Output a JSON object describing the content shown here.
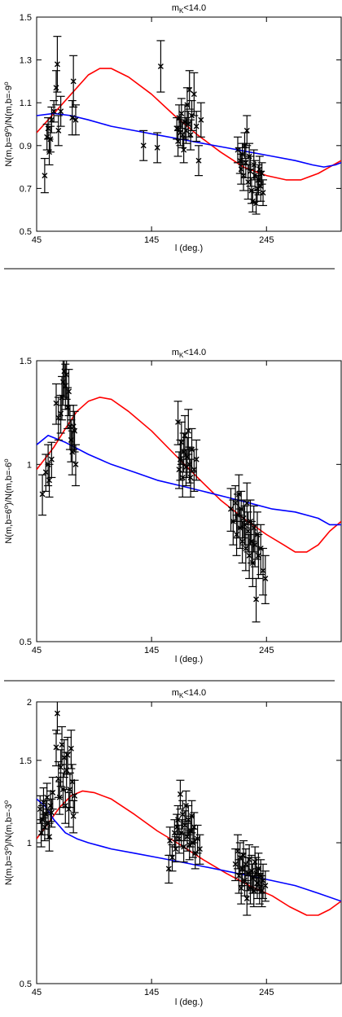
{
  "chart_data": [
    {
      "type": "scatter",
      "title": "m_K<14.0",
      "title_main": "m",
      "title_sub": "K",
      "title_rest": "<14.0",
      "xlabel": "l (deg.)",
      "ylabel": "N(m,b=9°)/N(m,b=-9°)",
      "ylabel_text": "N(m,b=9",
      "ylabel_text2": ")/N(m,b=-9",
      "ylabel_deg": "o",
      "xlim": [
        45,
        310
      ],
      "ylim": [
        0.5,
        1.5
      ],
      "xticks": [
        "45",
        "145",
        "245"
      ],
      "xtick_values": [
        45,
        145,
        245
      ],
      "yticks": [
        "0.5",
        "0.7",
        "0.9",
        "1.1",
        "1.3",
        "1.5"
      ],
      "ytick_values": [
        0.5,
        0.7,
        0.9,
        1.1,
        1.3,
        1.5
      ],
      "points": [
        [
          52,
          0.76,
          0.08
        ],
        [
          54,
          0.94,
          0.06
        ],
        [
          55,
          0.98,
          0.05
        ],
        [
          56,
          0.87,
          0.06
        ],
        [
          57,
          0.93,
          0.06
        ],
        [
          58,
          1.02,
          0.06
        ],
        [
          60,
          1.06,
          0.05
        ],
        [
          62,
          1.17,
          0.08
        ],
        [
          63,
          1.28,
          0.13
        ],
        [
          64,
          0.97,
          0.07
        ],
        [
          66,
          1.06,
          0.07
        ],
        [
          76,
          1.03,
          0.08
        ],
        [
          77,
          1.2,
          0.12
        ],
        [
          79,
          1.02,
          0.07
        ],
        [
          138,
          0.9,
          0.07
        ],
        [
          150,
          0.89,
          0.07
        ],
        [
          153,
          1.27,
          0.12
        ],
        [
          167,
          0.98,
          0.05
        ],
        [
          168,
          0.92,
          0.07
        ],
        [
          169,
          1.03,
          0.06
        ],
        [
          170,
          0.96,
          0.06
        ],
        [
          171,
          1.05,
          0.07
        ],
        [
          172,
          0.95,
          0.06
        ],
        [
          173,
          0.88,
          0.06
        ],
        [
          174,
          1.01,
          0.08
        ],
        [
          175,
          0.97,
          0.06
        ],
        [
          176,
          1.09,
          0.08
        ],
        [
          177,
          1.0,
          0.06
        ],
        [
          178,
          1.16,
          0.09
        ],
        [
          179,
          0.95,
          0.07
        ],
        [
          180,
          1.04,
          0.07
        ],
        [
          182,
          1.14,
          0.1
        ],
        [
          184,
          0.99,
          0.07
        ],
        [
          186,
          0.83,
          0.07
        ],
        [
          188,
          1.02,
          0.08
        ],
        [
          220,
          0.88,
          0.06
        ],
        [
          222,
          0.83,
          0.06
        ],
        [
          223,
          0.79,
          0.07
        ],
        [
          224,
          0.86,
          0.05
        ],
        [
          225,
          0.76,
          0.07
        ],
        [
          226,
          0.9,
          0.06
        ],
        [
          227,
          0.82,
          0.07
        ],
        [
          228,
          0.97,
          0.07
        ],
        [
          229,
          0.73,
          0.08
        ],
        [
          230,
          0.85,
          0.06
        ],
        [
          231,
          0.78,
          0.07
        ],
        [
          232,
          0.69,
          0.06
        ],
        [
          233,
          0.64,
          0.05
        ],
        [
          234,
          0.81,
          0.07
        ],
        [
          235,
          0.76,
          0.07
        ],
        [
          236,
          0.63,
          0.05
        ],
        [
          237,
          0.7,
          0.06
        ],
        [
          238,
          0.74,
          0.07
        ],
        [
          239,
          0.79,
          0.06
        ],
        [
          240,
          0.71,
          0.07
        ],
        [
          241,
          0.77,
          0.05
        ],
        [
          242,
          0.68,
          0.06
        ]
      ],
      "series": [
        {
          "color": "#ff0000",
          "x": [
            45,
            60,
            75,
            90,
            100,
            110,
            125,
            145,
            165,
            185,
            205,
            225,
            245,
            262,
            275,
            290,
            300,
            310
          ],
          "y": [
            0.96,
            1.05,
            1.14,
            1.23,
            1.26,
            1.26,
            1.22,
            1.14,
            1.04,
            0.95,
            0.87,
            0.8,
            0.76,
            0.74,
            0.74,
            0.77,
            0.8,
            0.83
          ]
        },
        {
          "color": "#0000ff",
          "x": [
            45,
            60,
            75,
            90,
            110,
            130,
            150,
            170,
            190,
            210,
            230,
            250,
            270,
            285,
            295,
            305,
            310
          ],
          "y": [
            1.04,
            1.05,
            1.04,
            1.02,
            0.99,
            0.97,
            0.95,
            0.93,
            0.91,
            0.89,
            0.87,
            0.85,
            0.83,
            0.81,
            0.8,
            0.81,
            0.82
          ]
        }
      ]
    },
    {
      "type": "scatter",
      "title": "m_K<14.0",
      "title_main": "m",
      "title_sub": "K",
      "title_rest": "<14.0",
      "xlabel": "l (deg.)",
      "ylabel": "N(m,b=6°)/N(m,b=-6°)",
      "ylabel_text": "N(m,b=6",
      "ylabel_text2": ")/N(m,b=-6",
      "ylabel_deg": "o",
      "xlim": [
        45,
        310
      ],
      "ylim": [
        0.5,
        1.5
      ],
      "log_y": true,
      "xticks": [
        "45",
        "145",
        "245"
      ],
      "xtick_values": [
        45,
        145,
        245
      ],
      "yticks": [
        "0.5",
        "1",
        "1.5"
      ],
      "ytick_values": [
        0.5,
        1.0,
        1.5
      ],
      "points": [
        [
          50,
          0.89,
          0.07
        ],
        [
          53,
          0.97,
          0.07
        ],
        [
          55,
          1.0,
          0.08
        ],
        [
          56,
          0.94,
          0.06
        ],
        [
          58,
          1.02,
          0.07
        ],
        [
          62,
          1.27,
          0.1
        ],
        [
          64,
          1.2,
          0.1
        ],
        [
          66,
          1.22,
          0.09
        ],
        [
          67,
          1.3,
          0.11
        ],
        [
          68,
          1.38,
          0.12
        ],
        [
          69,
          1.44,
          0.14
        ],
        [
          70,
          1.36,
          0.12
        ],
        [
          71,
          1.42,
          0.13
        ],
        [
          72,
          1.25,
          0.1
        ],
        [
          73,
          1.33,
          0.12
        ],
        [
          74,
          1.16,
          0.1
        ],
        [
          75,
          1.1,
          0.09
        ],
        [
          76,
          1.05,
          0.09
        ],
        [
          77,
          1.16,
          0.1
        ],
        [
          78,
          1.14,
          0.09
        ],
        [
          79,
          1.0,
          0.08
        ],
        [
          168,
          1.18,
          0.1
        ],
        [
          169,
          0.98,
          0.07
        ],
        [
          170,
          1.02,
          0.08
        ],
        [
          171,
          1.09,
          0.09
        ],
        [
          172,
          0.95,
          0.07
        ],
        [
          173,
          1.05,
          0.08
        ],
        [
          174,
          1.12,
          0.09
        ],
        [
          175,
          0.99,
          0.07
        ],
        [
          176,
          1.03,
          0.08
        ],
        [
          177,
          1.14,
          0.1
        ],
        [
          178,
          1.0,
          0.07
        ],
        [
          179,
          0.95,
          0.07
        ],
        [
          180,
          1.06,
          0.09
        ],
        [
          182,
          0.98,
          0.08
        ],
        [
          184,
          1.02,
          0.08
        ],
        [
          214,
          0.84,
          0.07
        ],
        [
          216,
          0.8,
          0.07
        ],
        [
          218,
          0.86,
          0.06
        ],
        [
          219,
          0.76,
          0.06
        ],
        [
          220,
          0.82,
          0.07
        ],
        [
          221,
          0.89,
          0.07
        ],
        [
          222,
          0.78,
          0.06
        ],
        [
          223,
          0.84,
          0.06
        ],
        [
          224,
          0.74,
          0.06
        ],
        [
          225,
          0.81,
          0.06
        ],
        [
          226,
          0.79,
          0.06
        ],
        [
          227,
          0.72,
          0.06
        ],
        [
          228,
          0.86,
          0.07
        ],
        [
          229,
          0.77,
          0.06
        ],
        [
          230,
          0.7,
          0.06
        ],
        [
          231,
          0.8,
          0.07
        ],
        [
          232,
          0.74,
          0.06
        ],
        [
          233,
          0.68,
          0.06
        ],
        [
          234,
          0.78,
          0.07
        ],
        [
          235,
          0.73,
          0.06
        ],
        [
          236,
          0.59,
          0.05
        ],
        [
          237,
          0.76,
          0.07
        ],
        [
          238,
          0.7,
          0.06
        ],
        [
          240,
          0.72,
          0.07
        ],
        [
          242,
          0.66,
          0.06
        ],
        [
          244,
          0.64,
          0.06
        ]
      ],
      "series": [
        {
          "color": "#ff0000",
          "x": [
            45,
            60,
            70,
            80,
            90,
            100,
            110,
            125,
            145,
            165,
            185,
            205,
            225,
            245,
            260,
            270,
            280,
            290,
            300,
            310
          ],
          "y": [
            0.98,
            1.07,
            1.15,
            1.23,
            1.28,
            1.3,
            1.29,
            1.23,
            1.14,
            1.04,
            0.95,
            0.87,
            0.81,
            0.76,
            0.73,
            0.71,
            0.71,
            0.73,
            0.77,
            0.8
          ]
        },
        {
          "color": "#0000ff",
          "x": [
            45,
            55,
            70,
            90,
            110,
            130,
            150,
            170,
            190,
            210,
            230,
            250,
            270,
            290,
            300,
            310
          ],
          "y": [
            1.08,
            1.12,
            1.09,
            1.04,
            1.0,
            0.97,
            0.94,
            0.92,
            0.9,
            0.88,
            0.86,
            0.84,
            0.83,
            0.81,
            0.79,
            0.79
          ]
        }
      ]
    },
    {
      "type": "scatter",
      "title": "m_K<14.0",
      "title_main": "m",
      "title_sub": "K",
      "title_rest": "<14.0",
      "xlabel": "l (deg.)",
      "ylabel": "N(m,b=3°)/N(m,b=-3°)",
      "ylabel_text": "N(m,b=3",
      "ylabel_text2": ")/N(m,b=-3",
      "ylabel_deg": "o",
      "xlim": [
        45,
        310
      ],
      "ylim": [
        0.5,
        2.0
      ],
      "log_y": true,
      "xticks": [
        "45",
        "145",
        "245"
      ],
      "xtick_values": [
        45,
        145,
        245
      ],
      "yticks": [
        "0.5",
        "1",
        "1.5",
        "2"
      ],
      "ytick_values": [
        0.5,
        1.0,
        1.5,
        2.0
      ],
      "points": [
        [
          48,
          1.18,
          0.08
        ],
        [
          49,
          1.05,
          0.07
        ],
        [
          50,
          1.12,
          0.08
        ],
        [
          51,
          1.22,
          0.09
        ],
        [
          52,
          1.08,
          0.07
        ],
        [
          53,
          1.15,
          0.08
        ],
        [
          54,
          1.25,
          0.09
        ],
        [
          55,
          1.1,
          0.08
        ],
        [
          56,
          1.03,
          0.07
        ],
        [
          57,
          1.2,
          0.09
        ],
        [
          58,
          1.16,
          0.08
        ],
        [
          59,
          1.28,
          0.1
        ],
        [
          62,
          1.6,
          0.14
        ],
        [
          63,
          1.89,
          0.18
        ],
        [
          64,
          1.37,
          0.12
        ],
        [
          65,
          1.25,
          0.1
        ],
        [
          66,
          1.45,
          0.13
        ],
        [
          67,
          1.62,
          0.15
        ],
        [
          68,
          1.3,
          0.11
        ],
        [
          69,
          1.52,
          0.14
        ],
        [
          70,
          1.2,
          0.1
        ],
        [
          71,
          1.43,
          0.13
        ],
        [
          72,
          1.54,
          0.14
        ],
        [
          73,
          1.18,
          0.1
        ],
        [
          74,
          1.3,
          0.11
        ],
        [
          75,
          1.59,
          0.15
        ],
        [
          76,
          1.35,
          0.12
        ],
        [
          77,
          1.14,
          0.09
        ],
        [
          78,
          1.26,
          0.1
        ],
        [
          160,
          0.88,
          0.06
        ],
        [
          161,
          1.01,
          0.07
        ],
        [
          163,
          0.93,
          0.06
        ],
        [
          165,
          1.05,
          0.07
        ],
        [
          166,
          0.97,
          0.06
        ],
        [
          167,
          1.08,
          0.07
        ],
        [
          168,
          1.12,
          0.08
        ],
        [
          169,
          1.02,
          0.07
        ],
        [
          170,
          1.27,
          0.09
        ],
        [
          171,
          1.05,
          0.07
        ],
        [
          172,
          1.15,
          0.08
        ],
        [
          173,
          0.98,
          0.07
        ],
        [
          174,
          1.09,
          0.08
        ],
        [
          175,
          1.2,
          0.09
        ],
        [
          176,
          1.03,
          0.07
        ],
        [
          177,
          1.12,
          0.08
        ],
        [
          178,
          0.99,
          0.07
        ],
        [
          179,
          1.06,
          0.08
        ],
        [
          180,
          1.14,
          0.09
        ],
        [
          181,
          1.0,
          0.07
        ],
        [
          182,
          1.08,
          0.08
        ],
        [
          183,
          0.95,
          0.07
        ],
        [
          185,
          1.02,
          0.07
        ],
        [
          187,
          0.97,
          0.07
        ],
        [
          218,
          0.9,
          0.07
        ],
        [
          220,
          0.96,
          0.08
        ],
        [
          221,
          0.85,
          0.07
        ],
        [
          222,
          0.93,
          0.07
        ],
        [
          223,
          0.8,
          0.06
        ],
        [
          224,
          0.88,
          0.07
        ],
        [
          225,
          0.94,
          0.07
        ],
        [
          226,
          0.83,
          0.06
        ],
        [
          227,
          0.9,
          0.07
        ],
        [
          228,
          0.76,
          0.06
        ],
        [
          229,
          0.86,
          0.07
        ],
        [
          230,
          0.92,
          0.07
        ],
        [
          231,
          0.8,
          0.06
        ],
        [
          232,
          0.87,
          0.07
        ],
        [
          233,
          0.84,
          0.06
        ],
        [
          234,
          0.79,
          0.06
        ],
        [
          235,
          0.91,
          0.07
        ],
        [
          236,
          0.86,
          0.07
        ],
        [
          237,
          0.82,
          0.06
        ],
        [
          238,
          0.88,
          0.07
        ],
        [
          239,
          0.8,
          0.06
        ],
        [
          240,
          0.85,
          0.07
        ],
        [
          241,
          0.79,
          0.06
        ],
        [
          242,
          0.83,
          0.07
        ],
        [
          244,
          0.81,
          0.06
        ]
      ],
      "series": [
        {
          "color": "#ff0000",
          "x": [
            45,
            55,
            65,
            75,
            85,
            95,
            110,
            130,
            150,
            170,
            190,
            210,
            230,
            250,
            265,
            280,
            290,
            300,
            310
          ],
          "y": [
            1.02,
            1.1,
            1.19,
            1.26,
            1.29,
            1.28,
            1.24,
            1.15,
            1.06,
            0.99,
            0.92,
            0.86,
            0.81,
            0.77,
            0.73,
            0.7,
            0.7,
            0.72,
            0.75
          ]
        },
        {
          "color": "#0000ff",
          "x": [
            45,
            52,
            60,
            70,
            80,
            90,
            110,
            130,
            150,
            170,
            190,
            210,
            230,
            250,
            270,
            290,
            310
          ],
          "y": [
            1.24,
            1.2,
            1.12,
            1.05,
            1.02,
            1.0,
            0.97,
            0.95,
            0.93,
            0.91,
            0.89,
            0.87,
            0.85,
            0.83,
            0.81,
            0.78,
            0.75
          ]
        }
      ]
    }
  ]
}
